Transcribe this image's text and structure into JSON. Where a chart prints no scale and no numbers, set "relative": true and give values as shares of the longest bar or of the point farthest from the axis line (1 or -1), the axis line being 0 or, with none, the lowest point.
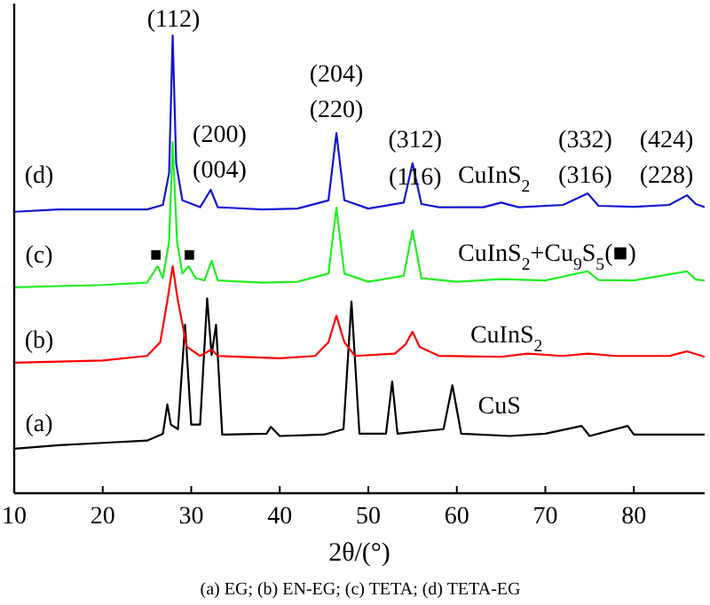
{
  "chart_data": {
    "type": "line",
    "relative": true,
    "xlabel": "2θ/(°)",
    "xlim": [
      10,
      88
    ],
    "xticks": [
      10,
      20,
      30,
      40,
      50,
      60,
      70,
      80
    ],
    "tick_labels": "x",
    "grid": false,
    "line_style": "solid",
    "series": [
      {
        "color": "#000000",
        "x": [
          10,
          15,
          20,
          25,
          26.8,
          27.3,
          27.7,
          28.5,
          29.3,
          30,
          31,
          31.8,
          32.3,
          32.8,
          33.5,
          38.5,
          39,
          40,
          45,
          47.2,
          48.1,
          49,
          52,
          52.7,
          53.3,
          58.5,
          59.5,
          60.5,
          66,
          70,
          74.1,
          75,
          79.3,
          80,
          88
        ],
        "values": [
          0.097,
          0.105,
          0.11,
          0.115,
          0.13,
          0.194,
          0.15,
          0.14,
          0.368,
          0.15,
          0.15,
          0.426,
          0.302,
          0.368,
          0.128,
          0.13,
          0.145,
          0.125,
          0.128,
          0.14,
          0.419,
          0.13,
          0.13,
          0.244,
          0.13,
          0.14,
          0.236,
          0.13,
          0.125,
          0.13,
          0.147,
          0.125,
          0.147,
          0.128,
          0.128
        ]
      },
      {
        "color": "#ff0000",
        "x": [
          10,
          20,
          25,
          26.5,
          27.3,
          27.9,
          28.5,
          29.5,
          31,
          32.3,
          33,
          40,
          44,
          45.5,
          46.4,
          47.3,
          48.5,
          53,
          54.2,
          55,
          55.8,
          58,
          65,
          68,
          72,
          74.8,
          78,
          84,
          86,
          88
        ],
        "values": [
          0.285,
          0.29,
          0.3,
          0.33,
          0.42,
          0.496,
          0.42,
          0.32,
          0.3,
          0.314,
          0.3,
          0.295,
          0.3,
          0.33,
          0.388,
          0.33,
          0.3,
          0.305,
          0.325,
          0.353,
          0.32,
          0.3,
          0.298,
          0.305,
          0.3,
          0.305,
          0.3,
          0.3,
          0.31,
          0.298
        ]
      },
      {
        "color": "#22ee22",
        "x": [
          10,
          20,
          25,
          26.2,
          26.8,
          27.5,
          27.9,
          28.4,
          29,
          29.7,
          30.5,
          31.5,
          32.3,
          33,
          38,
          42,
          45.5,
          46.4,
          47.3,
          50,
          54,
          55,
          56,
          60,
          65,
          70,
          74.8,
          76,
          80,
          86,
          87,
          88
        ],
        "values": [
          0.45,
          0.455,
          0.46,
          0.496,
          0.47,
          0.55,
          0.767,
          0.55,
          0.48,
          0.496,
          0.47,
          0.465,
          0.508,
          0.465,
          0.46,
          0.462,
          0.48,
          0.624,
          0.48,
          0.462,
          0.475,
          0.574,
          0.47,
          0.462,
          0.468,
          0.465,
          0.485,
          0.466,
          0.465,
          0.485,
          0.467,
          0.465
        ]
      },
      {
        "color": "#1414d2",
        "x": [
          10,
          15,
          20,
          25,
          26.8,
          27.5,
          27.9,
          28.3,
          29,
          31,
          32.2,
          33,
          38,
          42,
          45.5,
          46.4,
          47.3,
          50,
          54,
          55,
          56,
          58,
          63,
          65,
          67,
          72,
          74.8,
          76,
          80,
          84,
          86,
          87,
          88
        ],
        "values": [
          0.615,
          0.62,
          0.62,
          0.62,
          0.63,
          0.7,
          1.0,
          0.72,
          0.64,
          0.625,
          0.663,
          0.625,
          0.62,
          0.622,
          0.64,
          0.787,
          0.64,
          0.622,
          0.635,
          0.721,
          0.632,
          0.625,
          0.625,
          0.635,
          0.625,
          0.63,
          0.655,
          0.628,
          0.626,
          0.63,
          0.651,
          0.632,
          0.625
        ]
      }
    ],
    "annotations": [
      "(112)",
      "(200)",
      "(004)",
      "(204)",
      "(220)",
      "(312)",
      "(116)",
      "(332)",
      "(316)",
      "(424)",
      "(228)",
      "CuInS$_{2}$",
      "(d)",
      "(c)",
      "■",
      "■",
      "CuInS$_{2}$+Cu$_{9}$S$_{5}$(■)",
      "(b)",
      "CuInS$_{2}$",
      "(a)",
      "CuS",
      "(a) EG; (b) EN-EG; (c) TETA; (d) TETA-EG"
    ]
  }
}
